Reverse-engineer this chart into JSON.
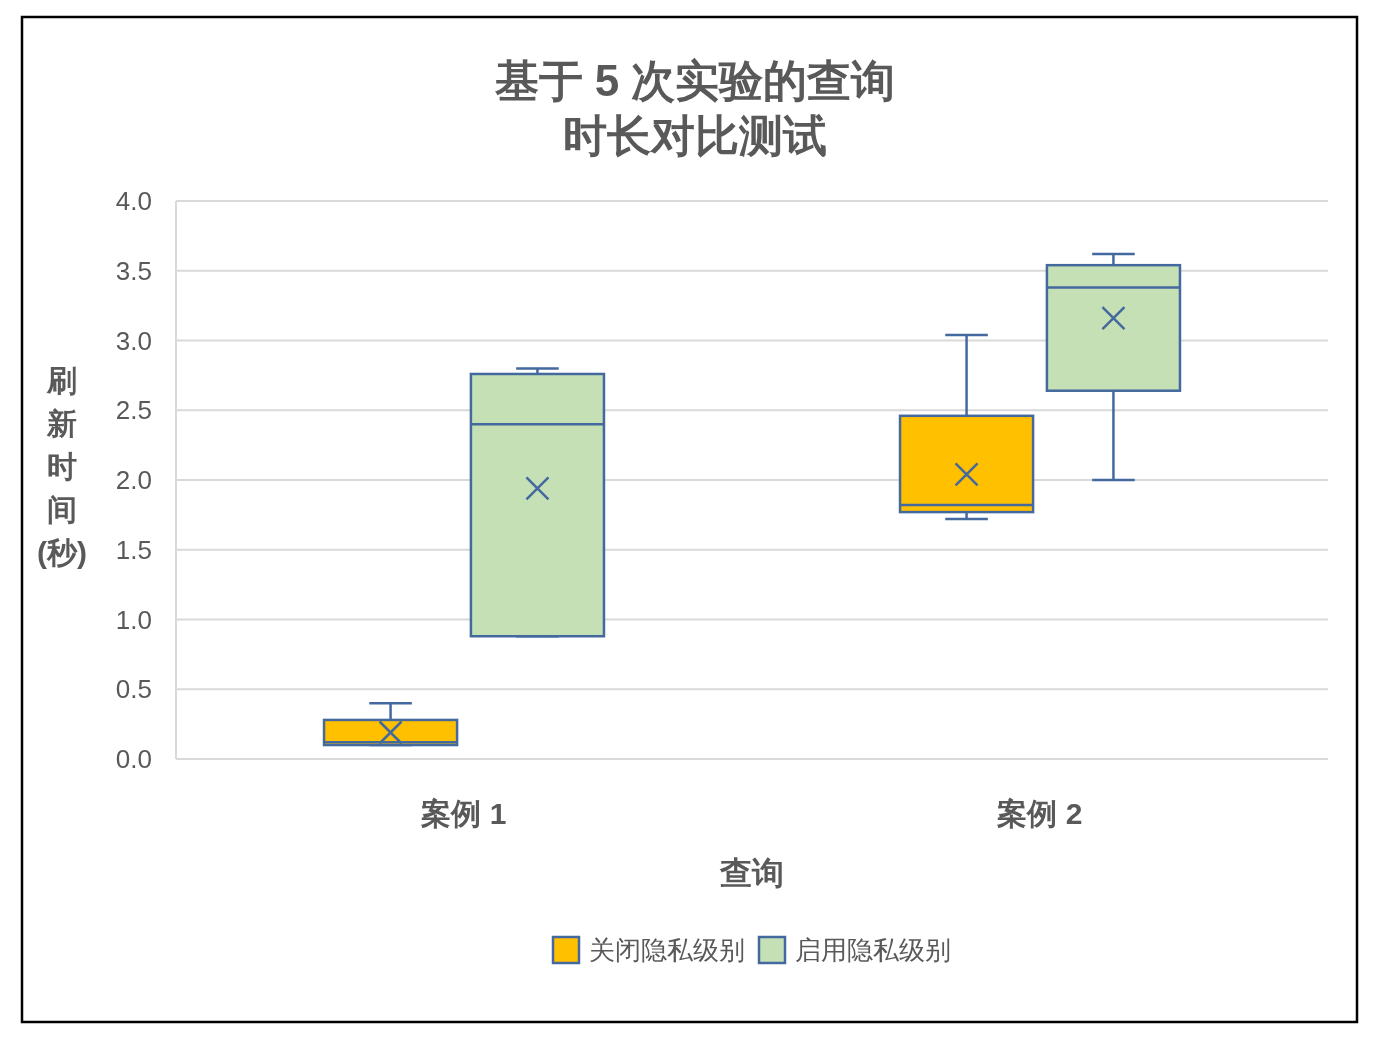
{
  "chart_data": {
    "type": "box",
    "title": "基于 5 次实验的查询时长对比测试",
    "xlabel": "查询",
    "ylabel": "刷新时间(秒)",
    "categories": [
      "案例 1",
      "案例 2"
    ],
    "series": [
      {
        "name": "关闭隐私级别",
        "color": "#ffc000",
        "boxes": [
          {
            "low": 0.1,
            "q1": 0.1,
            "median": 0.12,
            "q3": 0.28,
            "high": 0.4,
            "mean": 0.19
          },
          {
            "low": 1.72,
            "q1": 1.77,
            "median": 1.82,
            "q3": 2.46,
            "high": 3.04,
            "mean": 2.04
          }
        ]
      },
      {
        "name": "启用隐私级别",
        "color": "#c5e0b4",
        "boxes": [
          {
            "low": 0.88,
            "q1": 0.88,
            "median": 2.4,
            "q3": 2.76,
            "high": 2.8,
            "mean": 1.94
          },
          {
            "low": 2.0,
            "q1": 2.64,
            "median": 3.38,
            "q3": 3.54,
            "high": 3.62,
            "mean": 3.16
          }
        ]
      }
    ],
    "ylim": [
      0,
      4
    ],
    "yticks": [
      {
        "value": 0,
        "label": "0.0"
      },
      {
        "value": 0.5,
        "label": "0.5"
      },
      {
        "value": 1,
        "label": "1.0"
      },
      {
        "value": 1.5,
        "label": "1.5"
      },
      {
        "value": 2,
        "label": "2.0"
      },
      {
        "value": 2.5,
        "label": "2.5"
      },
      {
        "value": 3,
        "label": "3.0"
      },
      {
        "value": 3.5,
        "label": "3.5"
      },
      {
        "value": 4,
        "label": "4.0"
      }
    ],
    "grid": "y",
    "legend": "bottom"
  }
}
